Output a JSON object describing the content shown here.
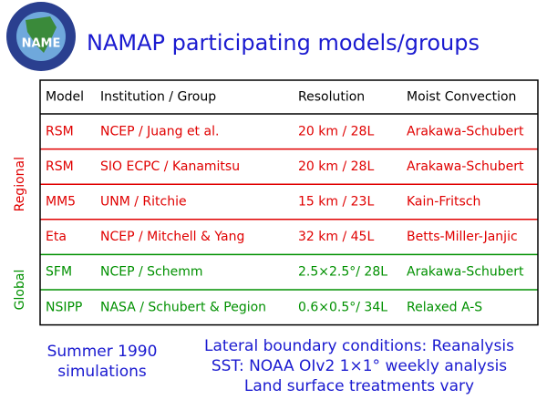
{
  "header": {
    "logo": "NAME",
    "title": "NAMAP participating models/groups"
  },
  "table": {
    "columns": [
      "Model",
      "Institution / Group",
      "Resolution",
      "Moist Convection"
    ],
    "groups": [
      {
        "label": "Regional",
        "color": "#e00000",
        "rows": [
          [
            "RSM",
            "NCEP / Juang et al.",
            "20 km / 28L",
            "Arakawa-Schubert"
          ],
          [
            "RSM",
            "SIO ECPC / Kanamitsu",
            "20 km / 28L",
            "Arakawa-Schubert"
          ],
          [
            "MM5",
            "UNM / Ritchie",
            "15 km / 23L",
            "Kain-Fritsch"
          ],
          [
            "Eta",
            "NCEP / Mitchell & Yang",
            "32 km / 45L",
            "Betts-Miller-Janjic"
          ]
        ]
      },
      {
        "label": "Global",
        "color": "#009000",
        "rows": [
          [
            "SFM",
            "NCEP / Schemm",
            "2.5×2.5°/ 28L",
            "Arakawa-Schubert"
          ],
          [
            "NSIPP",
            "NASA / Schubert & Pegion",
            "0.6×0.5°/ 34L",
            "Relaxed A-S"
          ]
        ]
      }
    ]
  },
  "notes": {
    "left": [
      "Summer 1990",
      "simulations"
    ],
    "right": [
      "Lateral boundary conditions: Reanalysis",
      "SST: NOAA OIv2 1×1° weekly analysis",
      "Land surface treatments vary"
    ]
  }
}
